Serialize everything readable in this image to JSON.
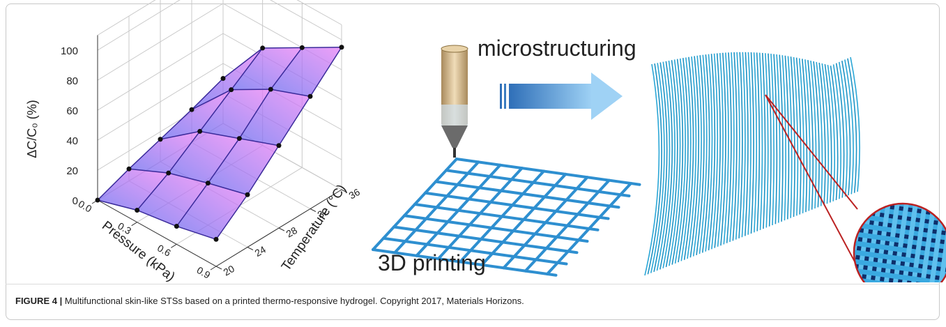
{
  "chart_data": {
    "type": "surface3d",
    "zlabel": "ΔC/C₀ (%)",
    "xlabel": "Pressure (kPa)",
    "ylabel": "Temperature (°C)",
    "x": [
      0,
      0.3,
      0.6,
      0.9
    ],
    "y": [
      20,
      24,
      28,
      32,
      36
    ],
    "values": [
      [
        0,
        8,
        15,
        22,
        30
      ],
      [
        8,
        20,
        35,
        50,
        65
      ],
      [
        12,
        28,
        45,
        65,
        80
      ],
      [
        18,
        35,
        55,
        75,
        95
      ]
    ],
    "xlim": [
      0,
      0.9
    ],
    "ylim": [
      20,
      36
    ],
    "zlim": [
      0,
      110
    ],
    "xticks": [
      {
        "value": 0,
        "label": "0.0"
      },
      0.3,
      0.6,
      0.9
    ],
    "yticks": [
      20,
      24,
      28,
      32,
      36
    ],
    "zticks": [
      0,
      20,
      40,
      60,
      80,
      100
    ],
    "colors": {
      "low": "#7b6cf2",
      "high": "#e07af5",
      "point": "#111111",
      "mesh": "#3a2a9a"
    }
  },
  "panels": {
    "arrow_label": "microstructuring",
    "printing_label": "3D printing"
  },
  "caption": {
    "label": "FIGURE 4 |",
    "text": " Multifunctional skin-like STSs based on a printed thermo-responsive hydrogel. Copyright 2017, Materials Horizons."
  }
}
